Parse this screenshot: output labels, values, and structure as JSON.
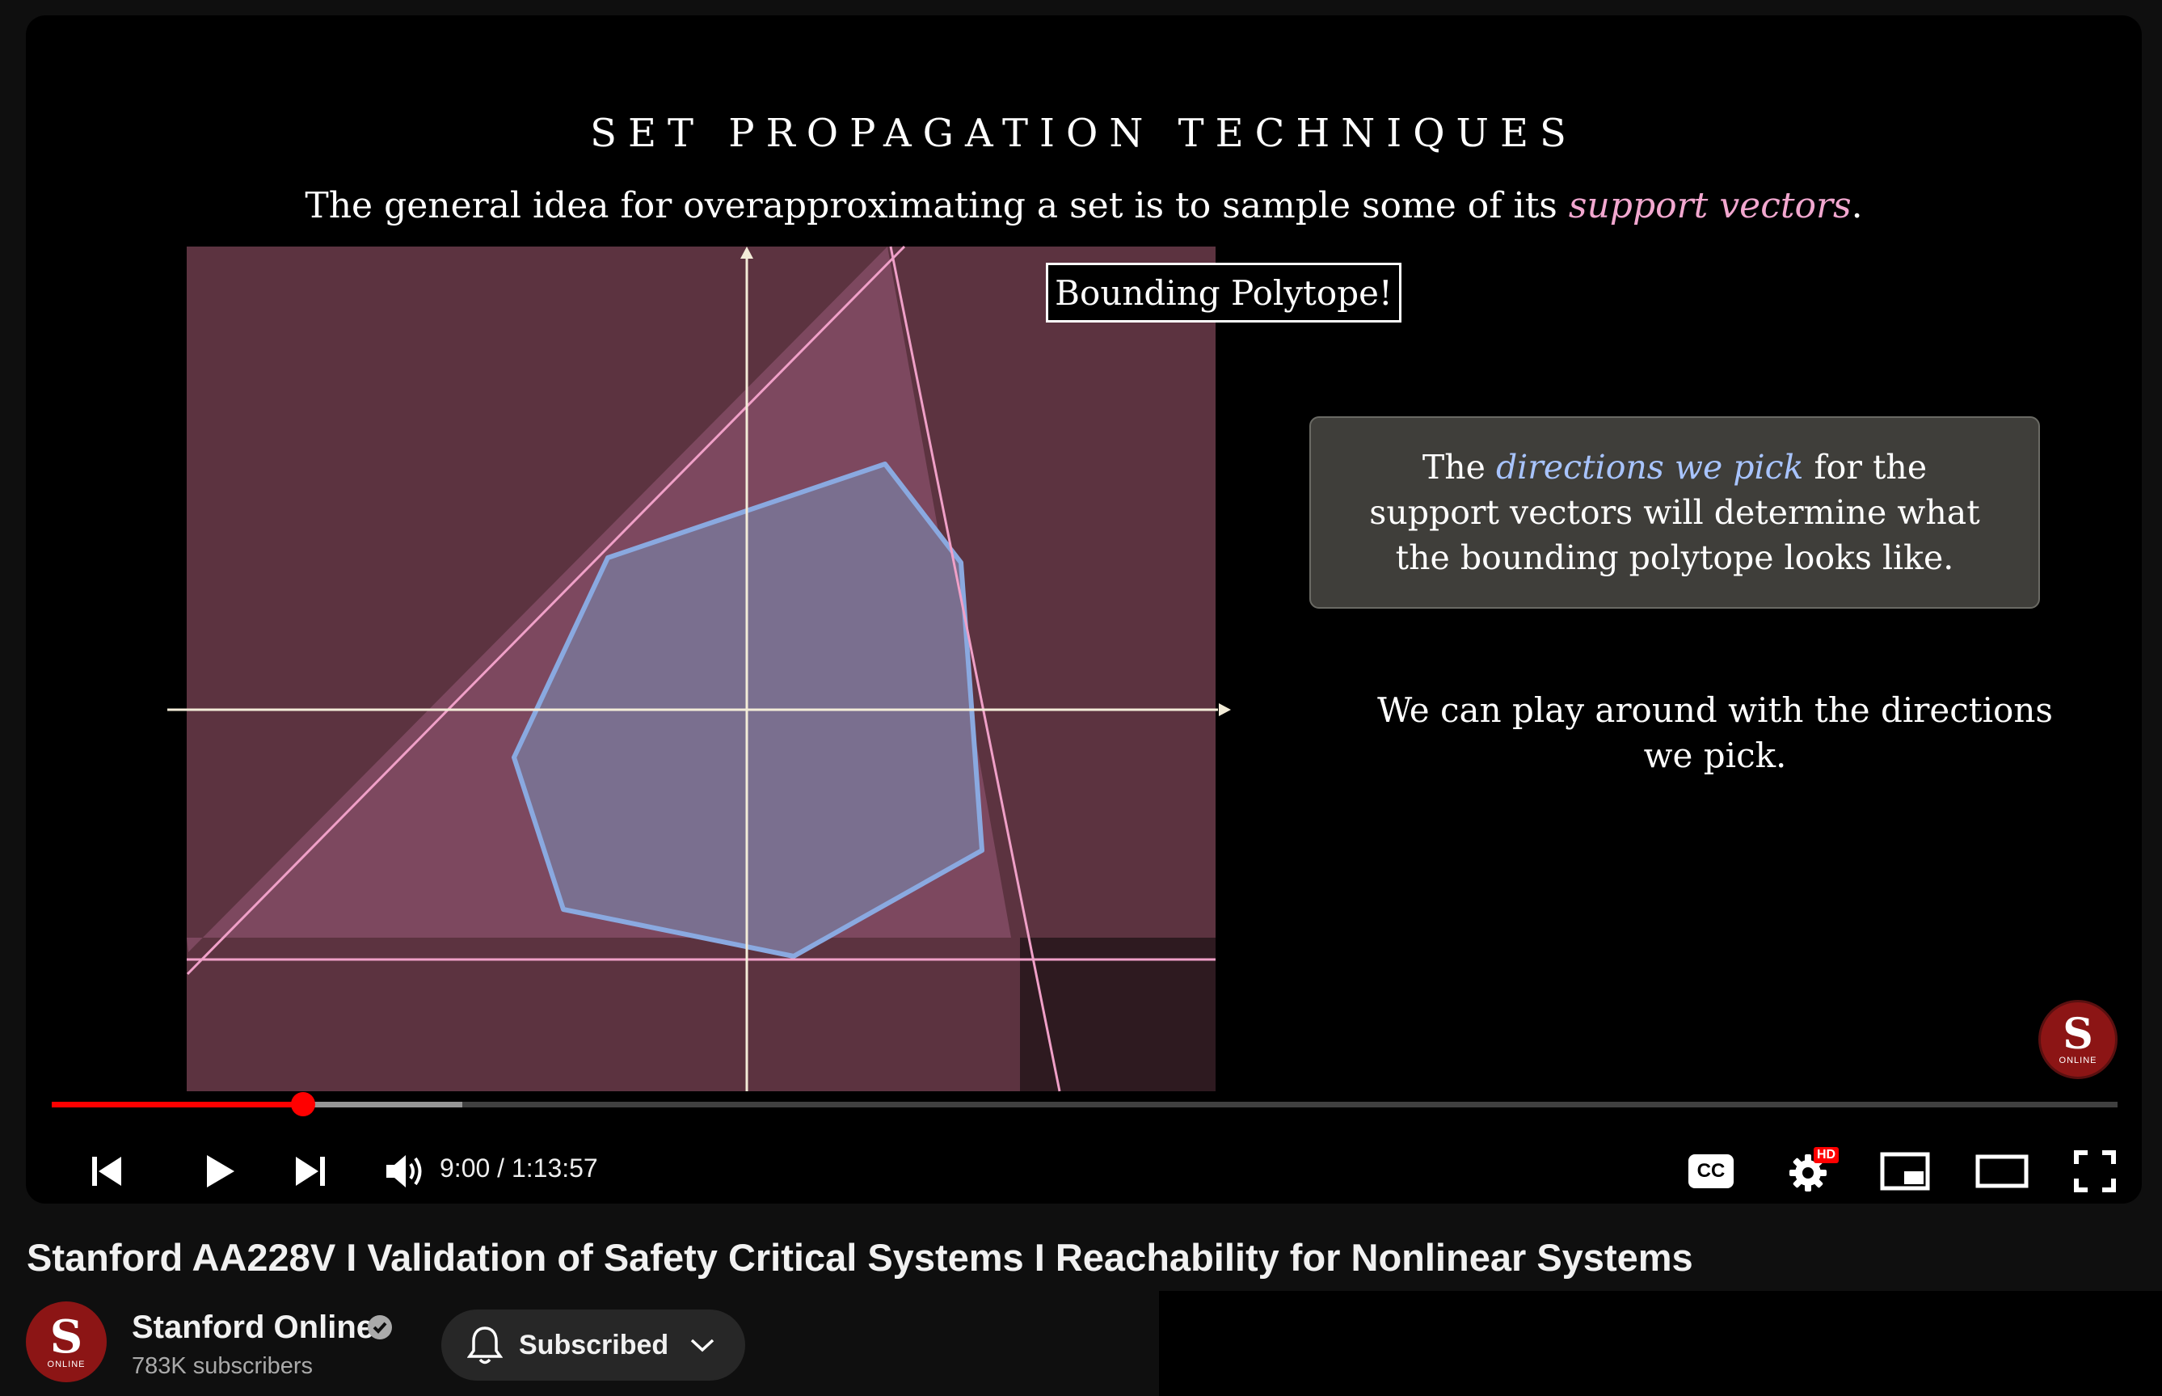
{
  "slide": {
    "title": "SET PROPAGATION TECHNIQUES",
    "subtitle_before": "The general idea for overapproximating a set is to sample some of its ",
    "subtitle_emphasis": "support vectors",
    "subtitle_after": ".",
    "bounding_label": "Bounding Polytope!",
    "callout_before": "The ",
    "callout_emphasis": "directions we pick",
    "callout_after": " for the support vectors will determine what the bounding polytope looks like.",
    "note": "We can play around with the directions we pick.",
    "watermark_letter": "S",
    "watermark_text": "ONLINE"
  },
  "colors": {
    "region_fill": "#5c3340",
    "polytope_fill": "#7e4a61",
    "set_fill": "#7a6f8f",
    "set_stroke": "#8aa9e0",
    "halfplane_line": "#f0a0c8",
    "axis": "#f3ecd8",
    "progress_played": "#ff0000",
    "accent_em_pink": "#f2a7cf",
    "accent_em_blue": "#a8c4ff"
  },
  "player": {
    "progress_played_fraction": 0.1217,
    "progress_buffered_fraction": 0.1987,
    "time": "9:00 / 1:13:57",
    "controls": {
      "prev": "skip-previous-icon",
      "play": "play-icon",
      "next": "skip-next-icon",
      "volume": "volume-icon",
      "captions": "CC",
      "settings_badge": "HD",
      "miniplayer": "miniplayer-icon",
      "theater": "theater-mode-icon",
      "fullscreen": "fullscreen-icon"
    }
  },
  "video": {
    "title": "Stanford AA228V I Validation of Safety Critical Systems I Reachability for Nonlinear Systems"
  },
  "channel": {
    "name": "Stanford Online",
    "subscribers": "783K subscribers",
    "avatar_letter": "S",
    "avatar_text": "ONLINE"
  },
  "subscribe": {
    "label": "Subscribed"
  }
}
